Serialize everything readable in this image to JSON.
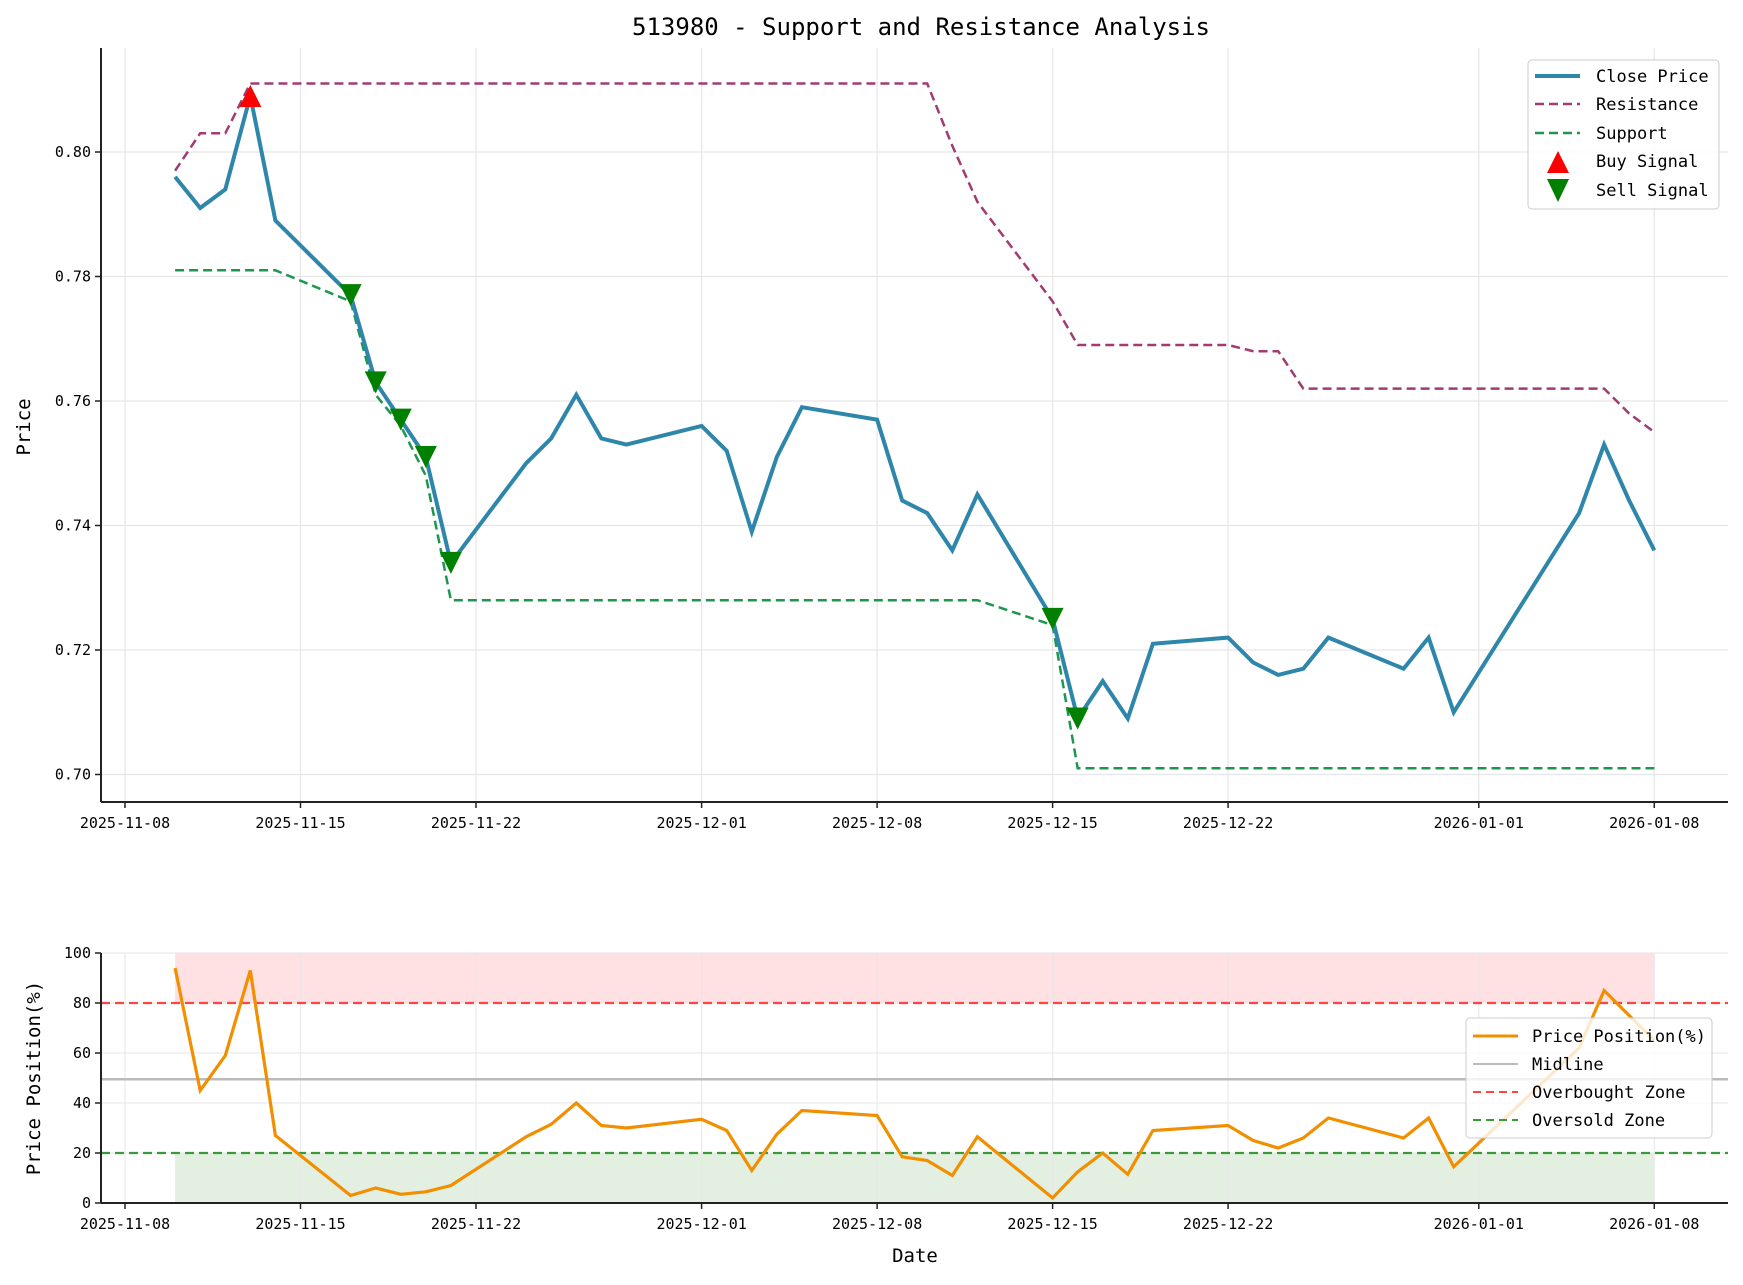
{
  "figure": {
    "title": "513980 - Support and Resistance Analysis"
  },
  "colors": {
    "close": "#2E86AB",
    "resistance": "#A23B72",
    "support": "#1E9650",
    "buy": "#FF0000",
    "sell": "#008000",
    "position": "#F18F01",
    "midline": "#BBBBBB",
    "overbought": "#FF4444",
    "oversold": "#3A9A3A",
    "overbought_fill": "#FFE0E3",
    "oversold_fill": "#E3F0E1",
    "grid": "#E6E6E6"
  },
  "chart_data": [
    {
      "type": "line",
      "title": "513980 - Support and Resistance Analysis",
      "xlabel": "",
      "ylabel": "Price",
      "ylim": [
        0.696,
        0.8155
      ],
      "xlim": [
        "2025-11-07",
        "2026-01-10"
      ],
      "yticks": [
        0.7,
        0.72,
        0.74,
        0.76,
        0.78,
        0.8
      ],
      "ytick_labels": [
        "0.70",
        "0.72",
        "0.74",
        "0.76",
        "0.78",
        "0.80"
      ],
      "xticks": [
        "2025-11-08",
        "2025-11-15",
        "2025-11-22",
        "2025-12-01",
        "2025-12-08",
        "2025-12-15",
        "2025-12-22",
        "2026-01-01",
        "2026-01-08"
      ],
      "grid": true,
      "legend_position": "upper right",
      "x": [
        "2025-11-10",
        "2025-11-11",
        "2025-11-12",
        "2025-11-13",
        "2025-11-14",
        "2025-11-17",
        "2025-11-18",
        "2025-11-19",
        "2025-11-20",
        "2025-11-21",
        "2025-11-24",
        "2025-11-25",
        "2025-11-26",
        "2025-11-27",
        "2025-11-28",
        "2025-12-01",
        "2025-12-02",
        "2025-12-03",
        "2025-12-04",
        "2025-12-05",
        "2025-12-08",
        "2025-12-09",
        "2025-12-10",
        "2025-12-11",
        "2025-12-12",
        "2025-12-15",
        "2025-12-16",
        "2025-12-17",
        "2025-12-18",
        "2025-12-19",
        "2025-12-22",
        "2025-12-23",
        "2025-12-24",
        "2025-12-25",
        "2025-12-26",
        "2025-12-29",
        "2025-12-30",
        "2025-12-31",
        "2026-01-05",
        "2026-01-06",
        "2026-01-07",
        "2026-01-08"
      ],
      "series": [
        {
          "name": "Close Price",
          "style": "solid",
          "values": [
            0.796,
            0.791,
            0.794,
            0.809,
            0.789,
            0.777,
            0.763,
            0.757,
            0.751,
            0.734,
            0.75,
            0.754,
            0.761,
            0.754,
            0.753,
            0.756,
            0.752,
            0.739,
            0.751,
            0.759,
            0.757,
            0.744,
            0.742,
            0.736,
            0.745,
            0.725,
            0.709,
            0.715,
            0.709,
            0.721,
            0.722,
            0.718,
            0.716,
            0.717,
            0.722,
            0.717,
            0.722,
            0.71,
            0.742,
            0.753,
            0.744,
            0.736
          ]
        },
        {
          "name": "Resistance",
          "style": "dashed",
          "values": [
            0.797,
            0.803,
            0.803,
            0.811,
            0.811,
            0.811,
            0.811,
            0.811,
            0.811,
            0.811,
            0.811,
            0.811,
            0.811,
            0.811,
            0.811,
            0.811,
            0.811,
            0.811,
            0.811,
            0.811,
            0.811,
            0.811,
            0.811,
            0.801,
            0.792,
            0.776,
            0.769,
            0.769,
            0.769,
            0.769,
            0.769,
            0.768,
            0.768,
            0.762,
            0.762,
            0.762,
            0.762,
            0.762,
            0.762,
            0.762,
            0.758,
            0.755
          ]
        },
        {
          "name": "Support",
          "style": "dashed",
          "values": [
            0.781,
            0.781,
            0.781,
            0.781,
            0.781,
            0.776,
            0.761,
            0.756,
            0.748,
            0.728,
            0.728,
            0.728,
            0.728,
            0.728,
            0.728,
            0.728,
            0.728,
            0.728,
            0.728,
            0.728,
            0.728,
            0.728,
            0.728,
            0.728,
            0.728,
            0.724,
            0.701,
            0.701,
            0.701,
            0.701,
            0.701,
            0.701,
            0.701,
            0.701,
            0.701,
            0.701,
            0.701,
            0.701,
            0.701,
            0.701,
            0.701,
            0.701
          ]
        }
      ],
      "buy_signals": [
        {
          "date": "2025-11-13",
          "value": 0.809
        }
      ],
      "sell_signals": [
        {
          "date": "2025-11-17",
          "value": 0.777
        },
        {
          "date": "2025-11-18",
          "value": 0.763
        },
        {
          "date": "2025-11-19",
          "value": 0.757
        },
        {
          "date": "2025-11-20",
          "value": 0.751
        },
        {
          "date": "2025-11-21",
          "value": 0.734
        },
        {
          "date": "2025-12-15",
          "value": 0.725
        },
        {
          "date": "2025-12-16",
          "value": 0.709
        }
      ],
      "legend": [
        "Close Price",
        "Resistance",
        "Support",
        "Buy Signal",
        "Sell Signal"
      ]
    },
    {
      "type": "line",
      "title": "",
      "xlabel": "Date",
      "ylabel": "Price Position(%)",
      "ylim": [
        0,
        100
      ],
      "xlim": [
        "2025-11-07",
        "2026-01-10"
      ],
      "yticks": [
        0,
        20,
        40,
        60,
        80,
        100
      ],
      "ytick_labels": [
        "0",
        "20",
        "40",
        "60",
        "80",
        "100"
      ],
      "xticks": [
        "2025-11-08",
        "2025-11-15",
        "2025-11-22",
        "2025-12-01",
        "2025-12-08",
        "2025-12-15",
        "2025-12-22",
        "2026-01-01",
        "2026-01-08"
      ],
      "grid": true,
      "legend_position": "center right",
      "x": [
        "2025-11-10",
        "2025-11-11",
        "2025-11-12",
        "2025-11-13",
        "2025-11-14",
        "2025-11-17",
        "2025-11-18",
        "2025-11-19",
        "2025-11-20",
        "2025-11-21",
        "2025-11-24",
        "2025-11-25",
        "2025-11-26",
        "2025-11-27",
        "2025-11-28",
        "2025-12-01",
        "2025-12-02",
        "2025-12-03",
        "2025-12-04",
        "2025-12-05",
        "2025-12-08",
        "2025-12-09",
        "2025-12-10",
        "2025-12-11",
        "2025-12-12",
        "2025-12-15",
        "2025-12-16",
        "2025-12-17",
        "2025-12-18",
        "2025-12-19",
        "2025-12-22",
        "2025-12-23",
        "2025-12-24",
        "2025-12-25",
        "2025-12-26",
        "2025-12-29",
        "2025-12-30",
        "2025-12-31",
        "2026-01-05",
        "2026-01-06",
        "2026-01-07",
        "2026-01-08"
      ],
      "series": [
        {
          "name": "Price Position(%)",
          "style": "solid",
          "values": [
            94,
            45,
            59,
            93,
            27,
            3,
            6,
            3.5,
            4.5,
            7,
            26.5,
            31.5,
            40,
            31,
            30,
            33.5,
            29,
            13,
            27.5,
            37,
            35,
            18.5,
            17,
            11,
            26.5,
            2,
            12.5,
            20,
            11.5,
            29,
            31,
            25,
            22,
            26,
            34,
            26,
            34,
            14.5,
            62,
            85,
            75,
            65
          ]
        }
      ],
      "reference_lines": [
        {
          "name": "Midline",
          "value": 49.5,
          "style": "solid"
        },
        {
          "name": "Overbought Zone",
          "value": 80,
          "style": "dashed"
        },
        {
          "name": "Oversold Zone",
          "value": 20,
          "style": "dashed"
        }
      ],
      "shaded_regions": [
        {
          "name": "overbought",
          "from": 80,
          "to": 100,
          "x_from": "2025-11-10",
          "x_to": "2026-01-08"
        },
        {
          "name": "oversold",
          "from": 0,
          "to": 20,
          "x_from": "2025-11-10",
          "x_to": "2026-01-08"
        }
      ],
      "legend": [
        "Price Position(%)",
        "Midline",
        "Overbought Zone",
        "Oversold Zone"
      ]
    }
  ],
  "top_legend": {
    "close": "Close Price",
    "resistance": "Resistance",
    "support": "Support",
    "buy": "Buy Signal",
    "sell": "Sell Signal"
  },
  "bottom_legend": {
    "position": "Price Position(%)",
    "midline": "Midline",
    "overbought": "Overbought Zone",
    "oversold": "Oversold Zone"
  },
  "top_axes": {
    "ylabel": "Price",
    "yticks": [
      "0.70",
      "0.72",
      "0.74",
      "0.76",
      "0.78",
      "0.80"
    ],
    "xticks": [
      "2025-11-08",
      "2025-11-15",
      "2025-11-22",
      "2025-12-01",
      "2025-12-08",
      "2025-12-15",
      "2025-12-22",
      "2026-01-01",
      "2026-01-08"
    ]
  },
  "bottom_axes": {
    "ylabel": "Price Position(%)",
    "xlabel": "Date",
    "yticks": [
      "0",
      "20",
      "40",
      "60",
      "80",
      "100"
    ],
    "xticks": [
      "2025-11-08",
      "2025-11-15",
      "2025-11-22",
      "2025-12-01",
      "2025-12-08",
      "2025-12-15",
      "2025-12-22",
      "2026-01-01",
      "2026-01-08"
    ]
  }
}
